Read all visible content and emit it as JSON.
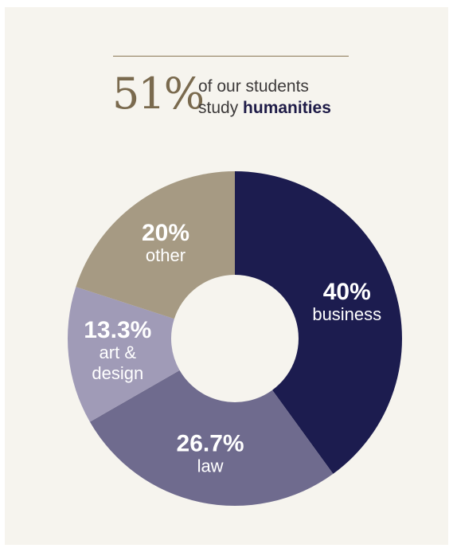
{
  "headline": {
    "percent": "51%",
    "line1": "of our students",
    "line2_prefix": "study",
    "line2_highlight": "humanities"
  },
  "colors": {
    "background": "#f6f4ee",
    "accent": "#8a7755"
  },
  "chart_data": {
    "type": "pie",
    "style": "donut",
    "start_angle": "top (12 o'clock), clockwise",
    "slices": [
      {
        "category": "business",
        "value": 40,
        "value_label": "40%",
        "label_lines": [
          "business"
        ],
        "color": "#1c1c4f"
      },
      {
        "category": "law",
        "value": 26.7,
        "value_label": "26.7%",
        "label_lines": [
          "law"
        ],
        "color": "#6f6b8e"
      },
      {
        "category": "art & design",
        "value": 13.3,
        "value_label": "13.3%",
        "label_lines": [
          "art &",
          "design"
        ],
        "color": "#a09bb7"
      },
      {
        "category": "other",
        "value": 20,
        "value_label": "20%",
        "label_lines": [
          "other"
        ],
        "color": "#a69a83"
      }
    ]
  }
}
